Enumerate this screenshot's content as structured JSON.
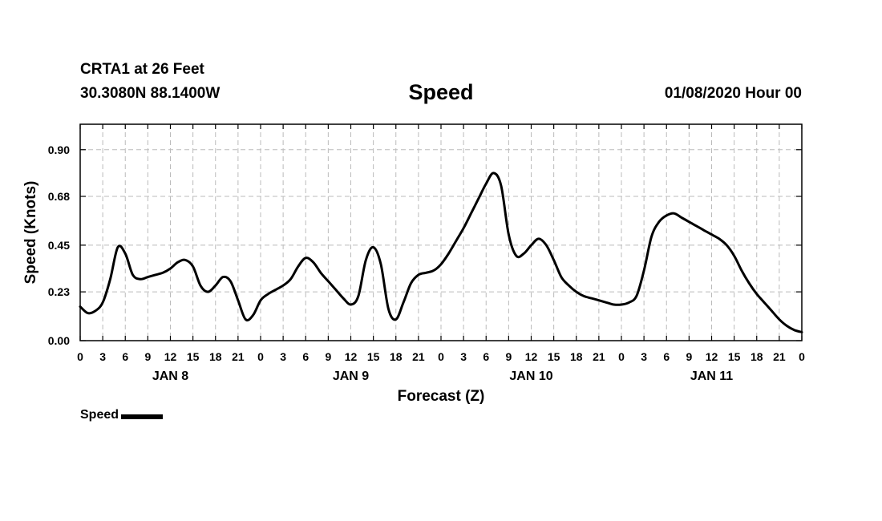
{
  "header": {
    "station": "CRTA1 at 26 Feet",
    "coords": "30.3080N 88.1400W",
    "title": "Speed",
    "date": "01/08/2020 Hour 00"
  },
  "colors": {
    "line": "#000000",
    "grid": "#bbbbbb",
    "frame": "#000000"
  },
  "chart_data": {
    "type": "line",
    "title": "Speed",
    "xlabel": "Forecast (Z)",
    "ylabel": "Speed (Knots)",
    "xlim": [
      0,
      96
    ],
    "ylim": [
      0,
      1.02
    ],
    "yticks": [
      0.0,
      0.23,
      0.45,
      0.68,
      0.9
    ],
    "ytick_labels": [
      "0.00",
      "0.23",
      "0.45",
      "0.68",
      "0.90"
    ],
    "xtick_labels": [
      "0",
      "3",
      "6",
      "9",
      "12",
      "15",
      "18",
      "21",
      "0",
      "3",
      "6",
      "9",
      "12",
      "15",
      "18",
      "21",
      "0",
      "3",
      "6",
      "9",
      "12",
      "15",
      "18",
      "21",
      "0",
      "3",
      "6",
      "9",
      "12",
      "15",
      "18",
      "21",
      "0"
    ],
    "days": [
      {
        "label": "JAN 8",
        "hour": 12
      },
      {
        "label": "JAN 9",
        "hour": 36
      },
      {
        "label": "JAN 10",
        "hour": 60
      },
      {
        "label": "JAN 11",
        "hour": 84
      }
    ],
    "grid": true,
    "legend": "bottom-left",
    "series": [
      {
        "name": "Speed",
        "x": [
          0,
          1,
          2,
          3,
          4,
          5,
          6,
          7,
          8,
          9,
          10,
          11,
          12,
          13,
          14,
          15,
          16,
          17,
          18,
          19,
          20,
          21,
          22,
          23,
          24,
          25,
          26,
          27,
          28,
          29,
          30,
          31,
          32,
          33,
          34,
          35,
          36,
          37,
          38,
          39,
          40,
          41,
          42,
          43,
          44,
          45,
          46,
          47,
          48,
          49,
          50,
          51,
          52,
          53,
          54,
          55,
          56,
          57,
          58,
          59,
          60,
          61,
          62,
          63,
          64,
          65,
          66,
          67,
          68,
          69,
          70,
          71,
          72,
          73,
          74,
          75,
          76,
          77,
          78,
          79,
          80,
          81,
          82,
          83,
          84,
          85,
          86,
          87,
          88,
          89,
          90,
          91,
          92,
          93,
          94,
          95,
          96
        ],
        "values": [
          0.16,
          0.13,
          0.14,
          0.18,
          0.29,
          0.44,
          0.41,
          0.31,
          0.29,
          0.3,
          0.31,
          0.32,
          0.34,
          0.37,
          0.38,
          0.35,
          0.26,
          0.23,
          0.26,
          0.3,
          0.28,
          0.19,
          0.1,
          0.12,
          0.19,
          0.22,
          0.24,
          0.26,
          0.29,
          0.35,
          0.39,
          0.37,
          0.32,
          0.28,
          0.24,
          0.2,
          0.17,
          0.21,
          0.38,
          0.44,
          0.36,
          0.15,
          0.1,
          0.18,
          0.27,
          0.31,
          0.32,
          0.33,
          0.36,
          0.41,
          0.47,
          0.53,
          0.6,
          0.67,
          0.74,
          0.79,
          0.73,
          0.5,
          0.4,
          0.41,
          0.45,
          0.48,
          0.45,
          0.38,
          0.3,
          0.26,
          0.23,
          0.21,
          0.2,
          0.19,
          0.18,
          0.17,
          0.17,
          0.18,
          0.21,
          0.33,
          0.49,
          0.56,
          0.59,
          0.6,
          0.58,
          0.56,
          0.54,
          0.52,
          0.5,
          0.48,
          0.45,
          0.4,
          0.33,
          0.27,
          0.22,
          0.18,
          0.14,
          0.1,
          0.07,
          0.05,
          0.04
        ]
      }
    ]
  },
  "legend": {
    "label": "Speed"
  }
}
